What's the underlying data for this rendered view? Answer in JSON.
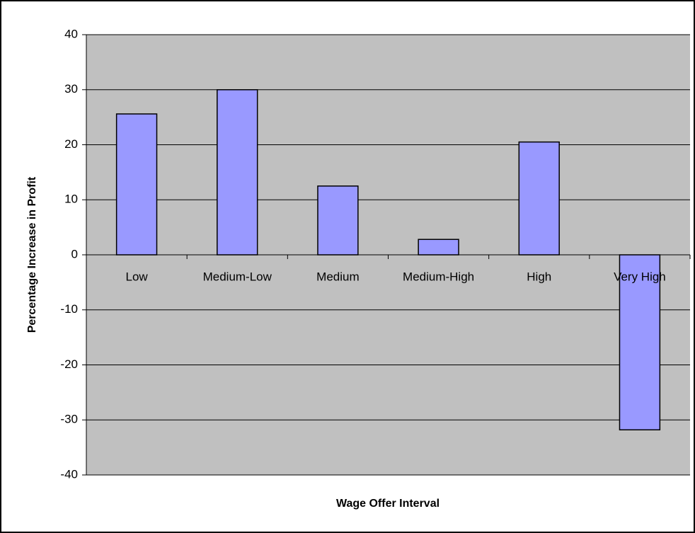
{
  "chart_data": {
    "type": "bar",
    "x_label": "Wage Offer Interval",
    "y_label": "Percentage Increase in Profit",
    "categories": [
      "Low",
      "Medium-Low",
      "Medium",
      "Medium-High",
      "High",
      "Very High"
    ],
    "values": [
      25.6,
      30,
      12.5,
      2.8,
      20.5,
      -31.8
    ],
    "color": "#9999ff",
    "ylim": [
      -40,
      40
    ],
    "yticks": [
      -40,
      -30,
      -20,
      -10,
      0,
      10,
      20,
      30,
      40
    ],
    "grid": true
  }
}
